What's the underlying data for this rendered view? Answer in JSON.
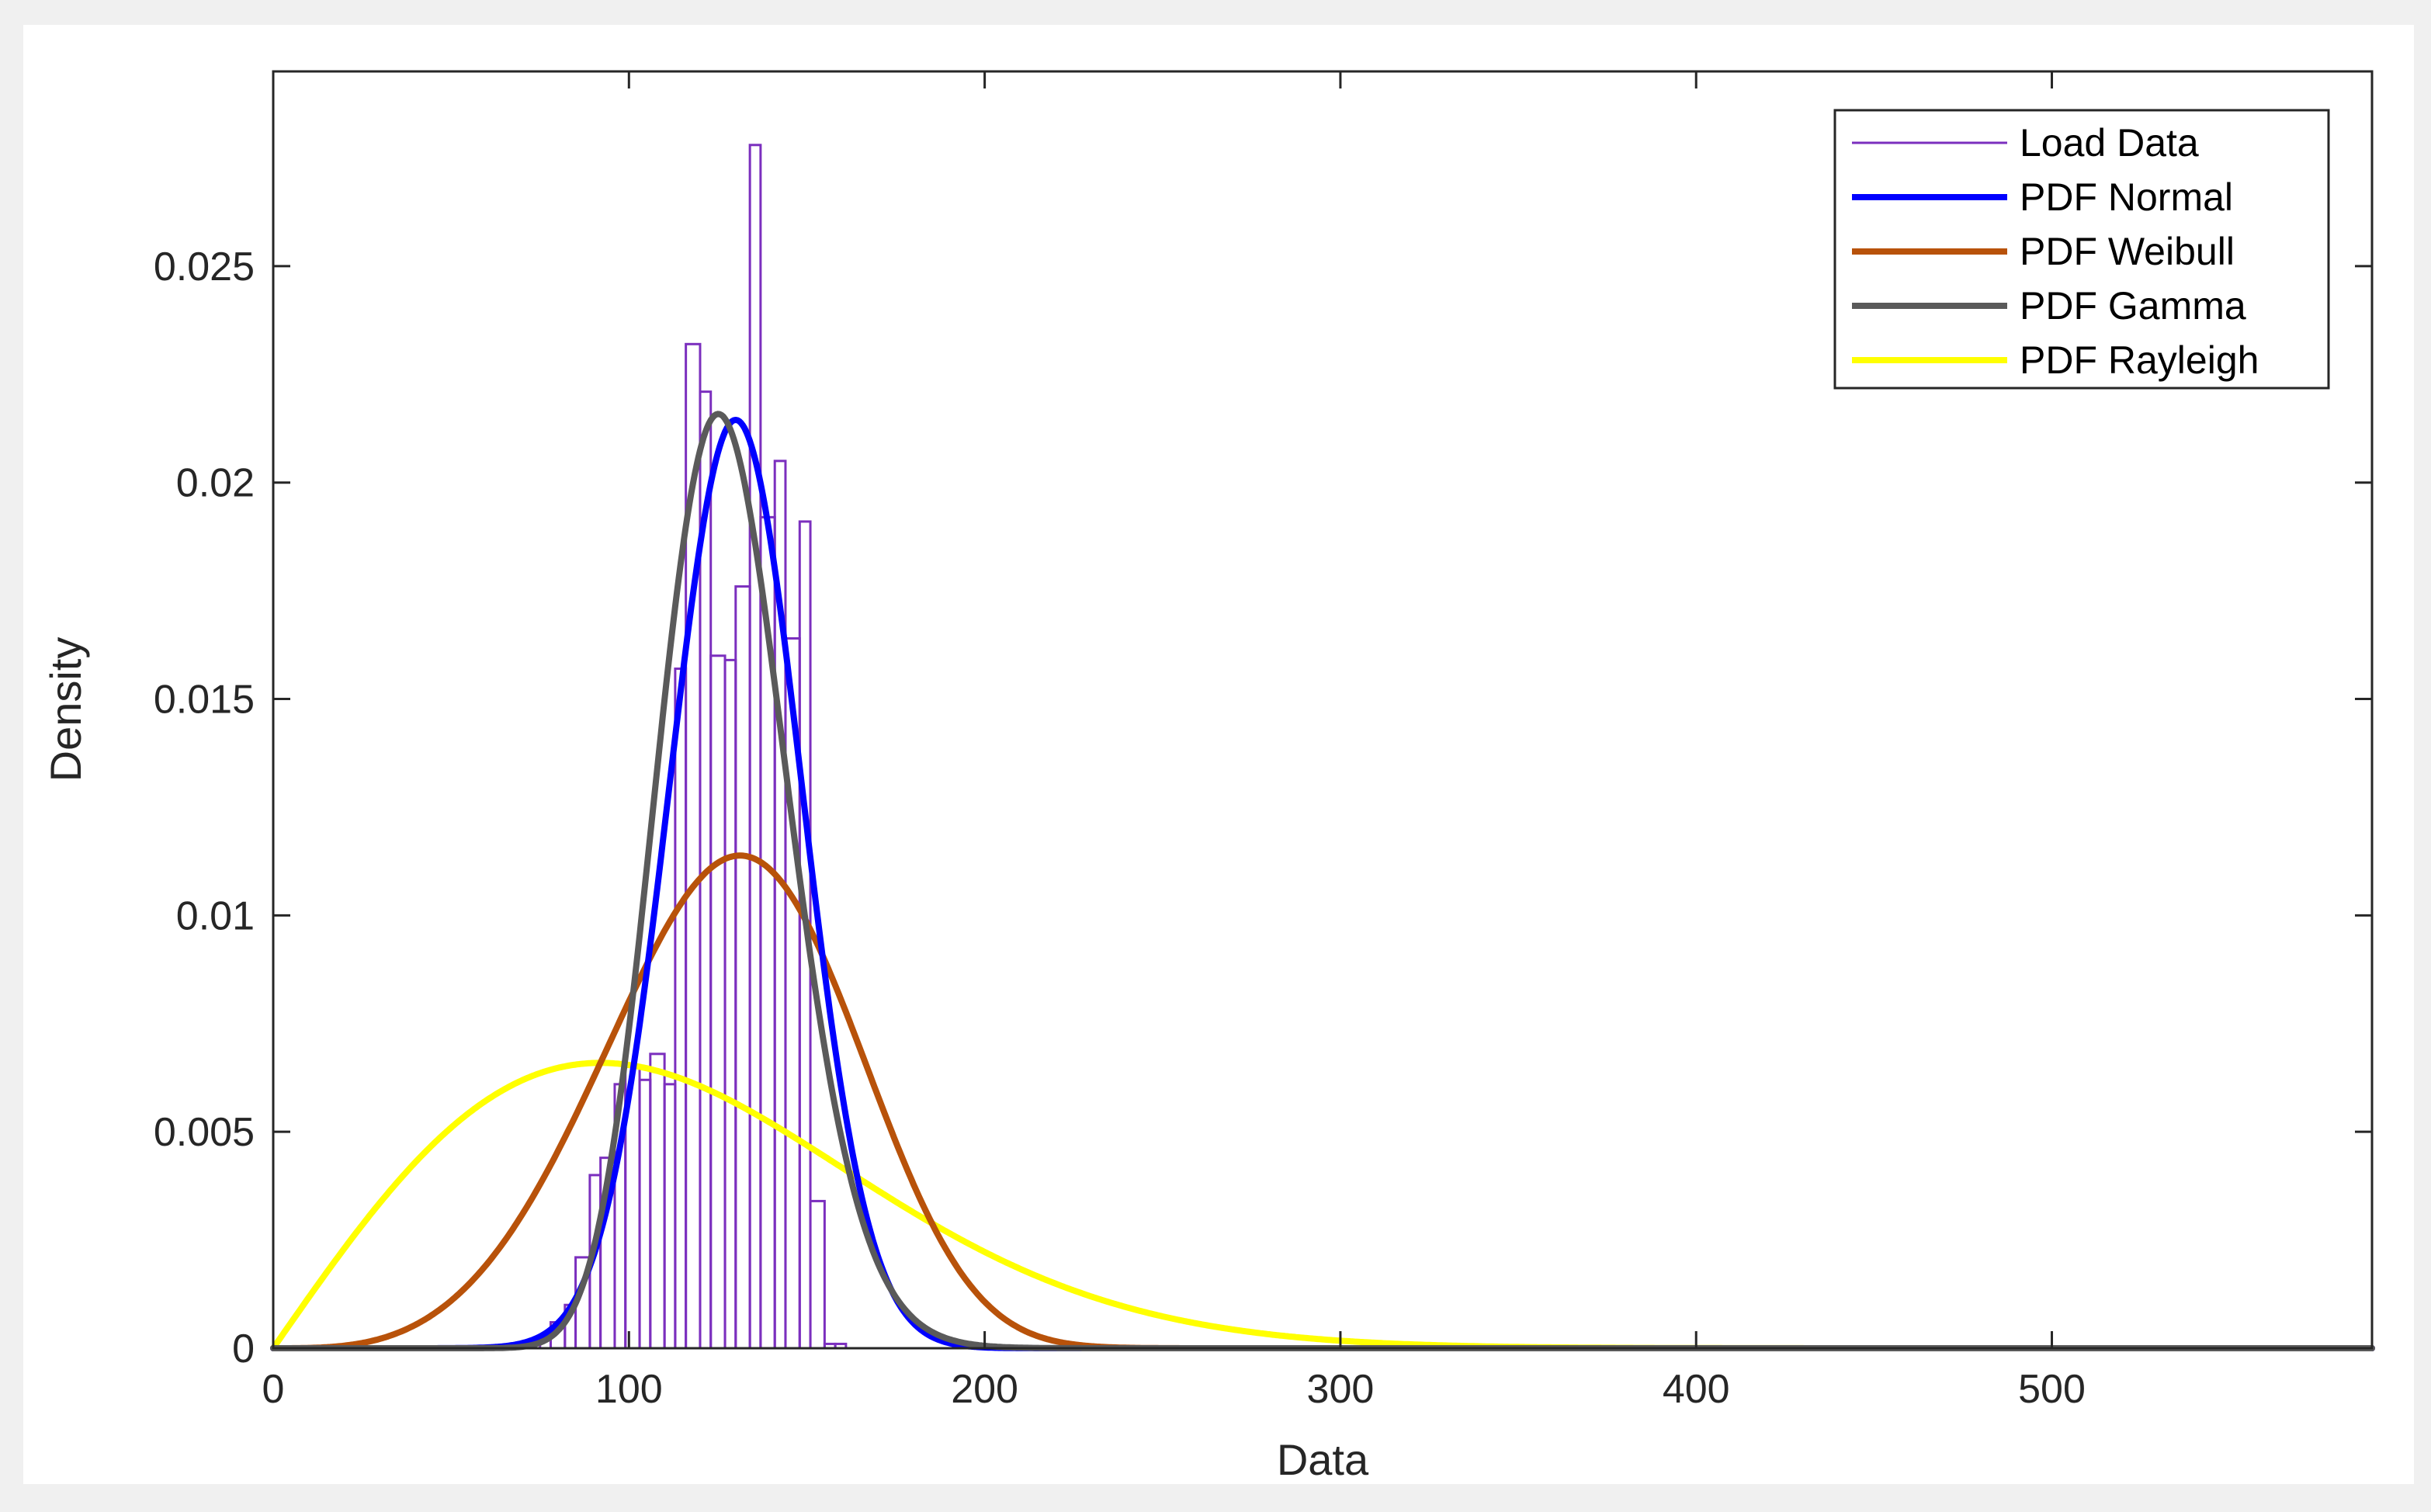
{
  "chart_data": {
    "type": "line",
    "title": "",
    "xlabel": "Data",
    "ylabel": "Density",
    "xlim": [
      0,
      590
    ],
    "ylim": [
      0,
      0.0295
    ],
    "xticks": [
      0,
      100,
      200,
      300,
      400,
      500
    ],
    "xtick_labels": [
      "0",
      "100",
      "200",
      "300",
      "400",
      "500"
    ],
    "yticks": [
      0,
      0.005,
      0.01,
      0.015,
      0.02,
      0.025
    ],
    "ytick_labels": [
      "0",
      "0.005",
      "0.01",
      "0.015",
      "0.02",
      "0.025"
    ],
    "grid": false,
    "legend_position": "top-right",
    "histogram": {
      "name": "Load Data",
      "color": "#7B2FBE",
      "bins": [
        {
          "x0": 75,
          "x1": 78,
          "y": 0.0002
        },
        {
          "x0": 78,
          "x1": 82,
          "y": 0.0006
        },
        {
          "x0": 82,
          "x1": 85,
          "y": 0.001
        },
        {
          "x0": 85,
          "x1": 89,
          "y": 0.0021
        },
        {
          "x0": 89,
          "x1": 92,
          "y": 0.004
        },
        {
          "x0": 92,
          "x1": 96,
          "y": 0.0044
        },
        {
          "x0": 96,
          "x1": 99,
          "y": 0.0061
        },
        {
          "x0": 99,
          "x1": 103,
          "y": 0.0065
        },
        {
          "x0": 103,
          "x1": 106,
          "y": 0.0062
        },
        {
          "x0": 106,
          "x1": 110,
          "y": 0.0068
        },
        {
          "x0": 110,
          "x1": 113,
          "y": 0.0061
        },
        {
          "x0": 113,
          "x1": 116,
          "y": 0.0157
        },
        {
          "x0": 116,
          "x1": 120,
          "y": 0.0232
        },
        {
          "x0": 120,
          "x1": 123,
          "y": 0.0221
        },
        {
          "x0": 123,
          "x1": 127,
          "y": 0.016
        },
        {
          "x0": 127,
          "x1": 130,
          "y": 0.0159
        },
        {
          "x0": 130,
          "x1": 134,
          "y": 0.0176
        },
        {
          "x0": 134,
          "x1": 137,
          "y": 0.0278
        },
        {
          "x0": 137,
          "x1": 141,
          "y": 0.0192
        },
        {
          "x0": 141,
          "x1": 144,
          "y": 0.0205
        },
        {
          "x0": 144,
          "x1": 148,
          "y": 0.0164
        },
        {
          "x0": 148,
          "x1": 151,
          "y": 0.0191
        },
        {
          "x0": 151,
          "x1": 155,
          "y": 0.0034
        },
        {
          "x0": 155,
          "x1": 158,
          "y": 0.0001
        },
        {
          "x0": 158,
          "x1": 161,
          "y": 0.0001
        }
      ]
    },
    "series": [
      {
        "name": "PDF Normal",
        "color": "#0000FF",
        "distribution": "normal",
        "mu": 130,
        "sigma": 18.6
      },
      {
        "name": "PDF Weibull",
        "color": "#B8520A",
        "distribution": "weibull",
        "scale": 140,
        "shape": 4.2
      },
      {
        "name": "PDF Gamma",
        "color": "#5A5A5A",
        "distribution": "gamma",
        "shape": 47,
        "scale": 2.72
      },
      {
        "name": "PDF Rayleigh",
        "color": "#FFFF00",
        "distribution": "rayleigh",
        "sigma": 92
      }
    ],
    "legend": [
      "Load Data",
      "PDF Normal",
      "PDF Weibull",
      "PDF Gamma",
      "PDF Rayleigh"
    ]
  }
}
